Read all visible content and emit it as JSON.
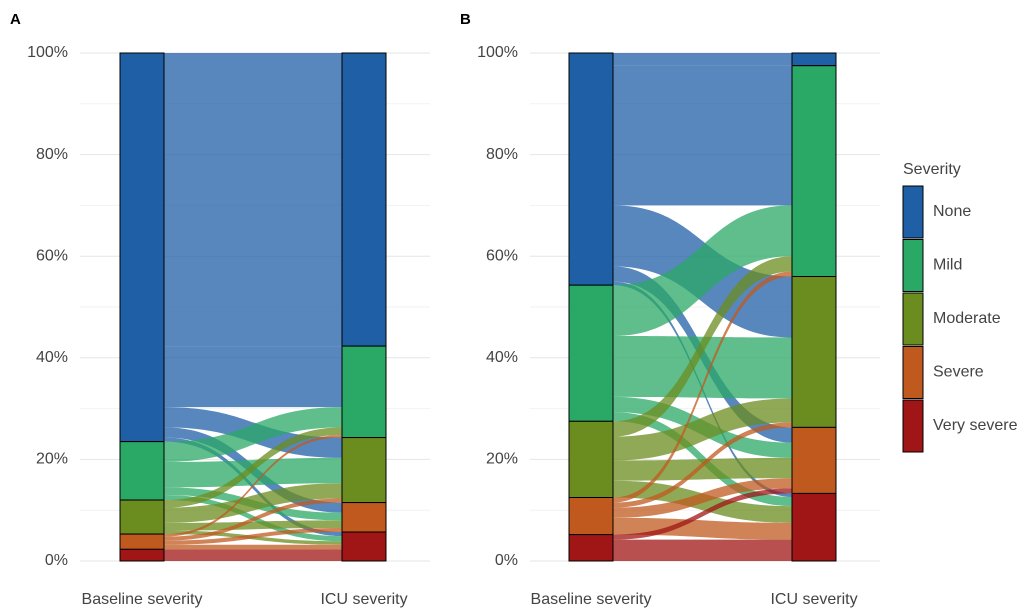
{
  "chart_data": [
    {
      "type": "alluvial",
      "title": "A",
      "categories": [
        "None",
        "Mild",
        "Moderate",
        "Severe",
        "Very severe"
      ],
      "colors": [
        "#1f5fa6",
        "#2aa866",
        "#6b8c1f",
        "#c0591e",
        "#a01515"
      ],
      "axes": [
        "Baseline severity",
        "ICU severity"
      ],
      "baseline": [
        76.5,
        11.5,
        6.7,
        3,
        2.3
      ],
      "icu": [
        57.7,
        18,
        12.8,
        5.8,
        5.7
      ],
      "flows": [
        [
          57.7,
          12,
          4,
          2,
          0.8
        ],
        [
          0,
          4,
          5,
          1.5,
          1
        ],
        [
          0,
          1.5,
          3,
          1.5,
          0.7
        ],
        [
          0,
          0.5,
          0.8,
          0.8,
          0.9
        ],
        [
          0,
          0,
          0,
          0,
          2.3
        ]
      ],
      "ylim": [
        0,
        100
      ],
      "yticks": [
        {
          "value": 0,
          "label": "0%"
        },
        {
          "value": 20,
          "label": "20%"
        },
        {
          "value": 40,
          "label": "40%"
        },
        {
          "value": 60,
          "label": "60%"
        },
        {
          "value": 80,
          "label": "80%"
        },
        {
          "value": 100,
          "label": "100%"
        }
      ],
      "minor_yticks": [
        10,
        30,
        50,
        70,
        90
      ],
      "grid": true
    },
    {
      "type": "alluvial",
      "title": "B",
      "categories": [
        "None",
        "Mild",
        "Moderate",
        "Severe",
        "Very severe"
      ],
      "colors": [
        "#1f5fa6",
        "#2aa866",
        "#6b8c1f",
        "#c0591e",
        "#a01515"
      ],
      "axes": [
        "Baseline severity",
        "ICU severity"
      ],
      "baseline": [
        45.7,
        26.8,
        15,
        7.3,
        5.2
      ],
      "icu": [
        2.5,
        41.5,
        29.7,
        13,
        13.3
      ],
      "flows": [
        [
          2.5,
          27.5,
          12,
          3,
          0.7
        ],
        [
          0,
          10,
          12,
          3,
          1.8
        ],
        [
          0,
          3,
          4.7,
          4,
          3.3
        ],
        [
          0,
          1,
          1,
          2,
          3.3
        ],
        [
          0,
          0,
          0,
          1,
          4.2
        ]
      ],
      "ylim": [
        0,
        100
      ],
      "yticks": [
        {
          "value": 0,
          "label": "0%"
        },
        {
          "value": 20,
          "label": "20%"
        },
        {
          "value": 40,
          "label": "40%"
        },
        {
          "value": 60,
          "label": "60%"
        },
        {
          "value": 80,
          "label": "80%"
        },
        {
          "value": 100,
          "label": "100%"
        }
      ],
      "minor_yticks": [
        10,
        30,
        50,
        70,
        90
      ],
      "grid": true,
      "legend_title": "Severity",
      "legend": "right"
    }
  ]
}
